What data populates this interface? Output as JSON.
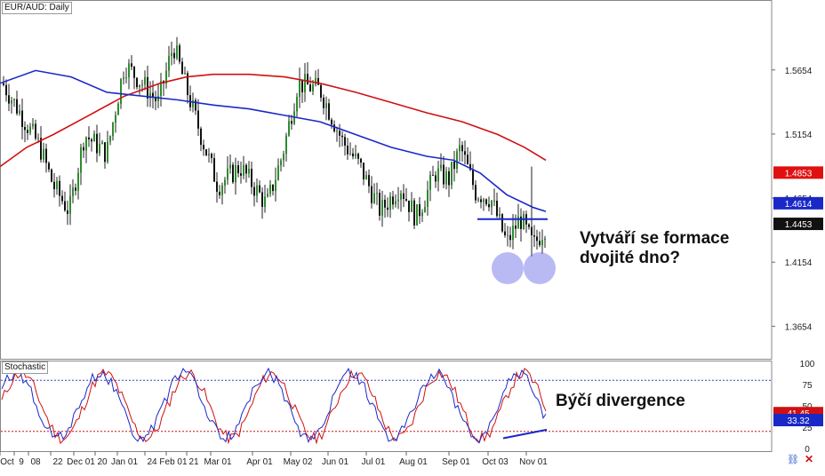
{
  "chart_data": [
    {
      "type": "candlestick",
      "title": "EUR/AUD: Daily",
      "ylim": [
        1.34,
        1.62
      ],
      "y_ticks": [
        "1.5654",
        "1.5154",
        "1.4654",
        "1.4154",
        "1.3654"
      ],
      "x_ticks": [
        "Oct",
        "9",
        "08",
        "22",
        "Dec 01",
        "20",
        "Jan 01",
        "24",
        "Feb 01",
        "21",
        "Mar 01",
        "Apr 01",
        "May 02",
        "Jun 01",
        "Jul 01",
        "Aug 01",
        "Sep 01",
        "Oct 03",
        "Nov 01"
      ],
      "series": [
        {
          "color": "#d01010",
          "approx_close_by_month": [
            1.48,
            1.5,
            1.52,
            1.535,
            1.53,
            1.52,
            1.52,
            1.52,
            1.52,
            1.515,
            1.505,
            1.5,
            1.485
          ]
        },
        {
          "color": "#1a28c8",
          "approx_close_by_month": [
            1.54,
            1.55,
            1.54,
            1.53,
            1.53,
            1.52,
            1.52,
            1.51,
            1.505,
            1.5,
            1.49,
            1.475,
            1.461
          ]
        },
        {
          "name": "price",
          "approx_close_by_month": [
            1.54,
            1.49,
            1.52,
            1.58,
            1.53,
            1.48,
            1.47,
            1.55,
            1.52,
            1.46,
            1.48,
            1.44,
            1.445
          ]
        }
      ],
      "price_labels": [
        {
          "value": "1.4853",
          "color": "#e01010"
        },
        {
          "value": "1.4614",
          "color": "#1a28c8"
        },
        {
          "value": "1.4453",
          "color": "#111111"
        }
      ],
      "annotations": {
        "resistance_line_level": 1.449,
        "bottoms_marked": 2,
        "text": "Vytváří se formace dvojité dno?"
      }
    },
    {
      "type": "line",
      "title": "Stochastic",
      "ylim": [
        0,
        100
      ],
      "y_ticks": [
        "100",
        "75",
        "50",
        "25",
        "0"
      ],
      "levels": [
        80,
        20
      ],
      "series": [
        {
          "color": "#d01010",
          "label_value": "41.45"
        },
        {
          "color": "#1a28c8",
          "label_value": "33.32"
        }
      ],
      "annotation": "Býčí divergence"
    }
  ],
  "labels": {
    "main_title": "EUR/AUD: Daily",
    "stoch_title": "Stochastic",
    "annot_double_bottom_line1": "Vytváří se formace",
    "annot_double_bottom_line2": "dvojité dno?",
    "annot_divergence": "Býčí divergence"
  }
}
